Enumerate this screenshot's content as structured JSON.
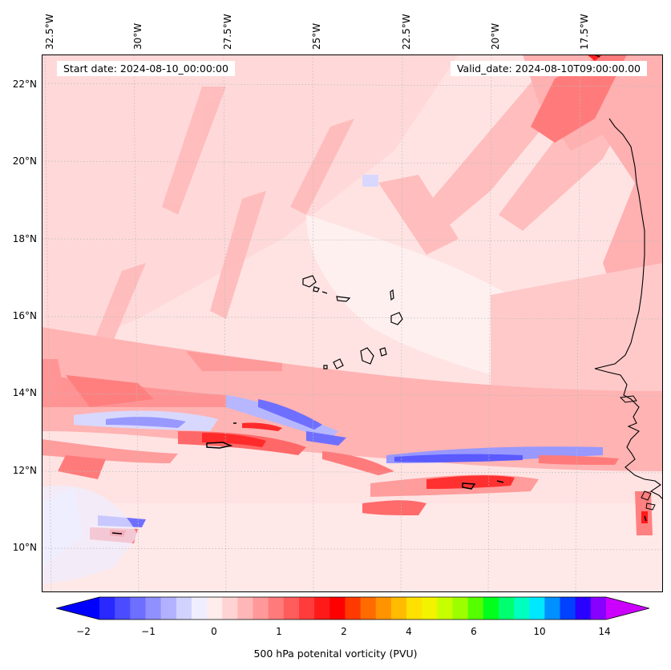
{
  "header": {
    "start_date": "Start date: 2024-08-10_00:00:00",
    "valid_date": "Valid_date: 2024-08-10T09:00:00.00"
  },
  "map": {
    "lon_labels": [
      "32.5°W",
      "30°W",
      "27.5°W",
      "25°W",
      "22.5°W",
      "20°W",
      "17.5°W"
    ],
    "lat_labels": [
      "22°N",
      "20°N",
      "18°N",
      "16°N",
      "14°N",
      "12°N",
      "10°N"
    ]
  },
  "colorbar": {
    "label": "500 hPa potenital vorticity (PVU)",
    "ticks": [
      "−2",
      "−1",
      "0",
      "1",
      "2",
      "4",
      "6",
      "10",
      "14"
    ],
    "colors": [
      "#0000ff",
      "#2828ff",
      "#4b4bff",
      "#6e6eff",
      "#9090ff",
      "#b1b1ff",
      "#d2d2ff",
      "#eeeeff",
      "#ffecec",
      "#ffd3d3",
      "#ffb6b6",
      "#ff9999",
      "#ff7b7b",
      "#ff5c5c",
      "#ff3c3c",
      "#ff1a1a",
      "#ff0000",
      "#ff3a00",
      "#ff6b00",
      "#ff9400",
      "#ffbb00",
      "#ffe000",
      "#f3f300",
      "#c8ff00",
      "#9cff00",
      "#55ff00",
      "#00ff1c",
      "#00ff70",
      "#00ffbf",
      "#00e8ff",
      "#0090ff",
      "#0040ff",
      "#2a00ff",
      "#8800ff",
      "#cc00ff"
    ]
  },
  "colors": {
    "background_pink": "#ffe3e3",
    "ridge": "#ffb3b3",
    "band": "#ff8080",
    "peak": "#ff2020",
    "negative": "#9494ff",
    "coast": "#000000"
  }
}
